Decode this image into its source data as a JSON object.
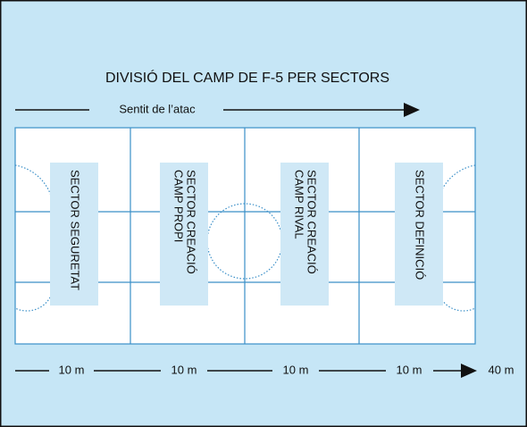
{
  "title": "DIVISIÓ DEL CAMP DE F-5 PER SECTORS",
  "direction": "Sentit de l’atac",
  "sectors": [
    {
      "lines": [
        "SECTOR SEGURETAT"
      ]
    },
    {
      "lines": [
        "SECTOR CREACIÓ",
        "CAMP PROPI"
      ]
    },
    {
      "lines": [
        "SECTOR CREACIÓ",
        "CAMP RIVAL"
      ]
    },
    {
      "lines": [
        "SECTOR DEFINICIÓ"
      ]
    }
  ],
  "distances": [
    "10 m",
    "10 m",
    "10 m",
    "10 m"
  ],
  "total": "40 m"
}
